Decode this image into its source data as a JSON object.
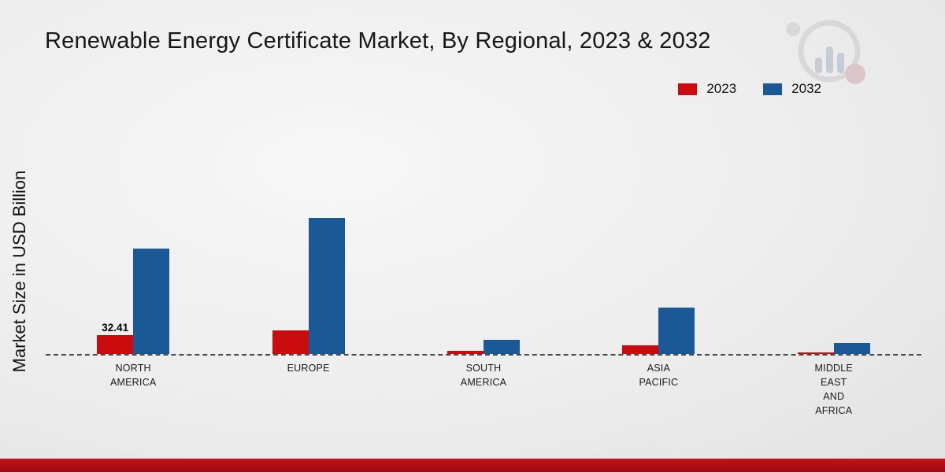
{
  "title": "Renewable Energy Certificate Market, By Regional, 2023 & 2032",
  "y_axis_label": "Market Size in USD Billion",
  "legend": {
    "items": [
      {
        "label": "2023",
        "color": "#cb0c0f"
      },
      {
        "label": "2032",
        "color": "#1a5896"
      }
    ],
    "position": "top-right"
  },
  "chart_data": {
    "type": "bar",
    "title": "Renewable Energy Certificate Market, By Regional, 2023 & 2032",
    "xlabel": "",
    "ylabel": "Market Size in USD Billion",
    "ylim": [
      0,
      250
    ],
    "grid": false,
    "legend_position": "top-right",
    "categories": [
      "NORTH AMERICA",
      "EUROPE",
      "SOUTH AMERICA",
      "ASIA PACIFIC",
      "MIDDLE EAST AND AFRICA"
    ],
    "categories_display": [
      "NORTH\nAMERICA",
      "EUROPE",
      "SOUTH\nAMERICA",
      "ASIA\nPACIFIC",
      "MIDDLE\nEAST\nAND\nAFRICA"
    ],
    "series": [
      {
        "name": "2023",
        "color": "#cb0c0f",
        "values": [
          32.41,
          40,
          5,
          15,
          3
        ]
      },
      {
        "name": "2032",
        "color": "#1a5896",
        "values": [
          181,
          234,
          24,
          80,
          19
        ]
      }
    ],
    "annotations": [
      {
        "series": "2023",
        "category": "NORTH AMERICA",
        "text": "32.41"
      }
    ]
  }
}
